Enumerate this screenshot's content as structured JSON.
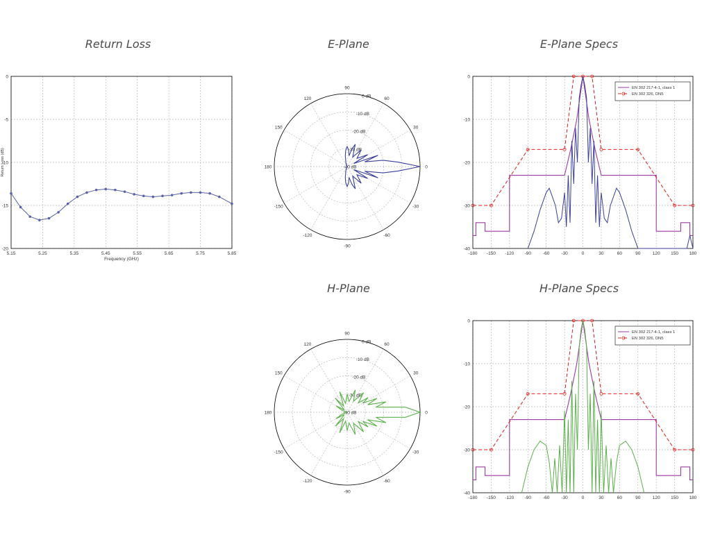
{
  "titles": {
    "return_loss": "Return Loss",
    "e_plane": "E-Plane",
    "e_plane_specs": "E-Plane Specs",
    "h_plane": "H-Plane",
    "h_plane_specs": "H-Plane Specs"
  },
  "colors": {
    "grid": "#b8b8b8",
    "frame": "#000000",
    "rl_curve": "#5a63a8",
    "e_pattern": "#3a3f9a",
    "h_pattern": "#5ab04a",
    "spec1": "#9b3aa0",
    "spec2": "#e02020",
    "text": "#333333"
  },
  "chart_data": [
    {
      "type": "line",
      "id": "return-loss",
      "xlabel": "Frequency (GHz)",
      "ylabel": "Return Loss (dB)",
      "xlim": [
        5.15,
        5.85
      ],
      "ylim": [
        -20,
        0
      ],
      "xticks": [
        "5.15",
        "5.25",
        "5.35",
        "5.45",
        "5.55",
        "5.65",
        "5.75",
        "5.85"
      ],
      "yticks": [
        "0",
        "-5",
        "-10",
        "-15",
        "-20"
      ],
      "grid": true,
      "series": [
        {
          "x": [
            5.15,
            5.18,
            5.21,
            5.24,
            5.27,
            5.3,
            5.33,
            5.36,
            5.39,
            5.42,
            5.45,
            5.48,
            5.51,
            5.54,
            5.57,
            5.6,
            5.63,
            5.66,
            5.69,
            5.72,
            5.75,
            5.78,
            5.81,
            5.85
          ],
          "y": [
            -13.6,
            -15.2,
            -16.3,
            -16.7,
            -16.5,
            -15.8,
            -14.8,
            -14.0,
            -13.5,
            -13.2,
            -13.1,
            -13.2,
            -13.4,
            -13.7,
            -13.9,
            -14.0,
            -13.9,
            -13.8,
            -13.6,
            -13.5,
            -13.5,
            -13.6,
            -14.0,
            -14.8
          ]
        }
      ]
    },
    {
      "type": "polar",
      "id": "e-plane",
      "rlim": [
        -40,
        0
      ],
      "ring_labels": [
        "0 dB",
        "-10 dB",
        "-20 dB",
        "-30 dB",
        "-40 dB"
      ],
      "angle_labels": [
        "90",
        "60",
        "30",
        "0",
        "-30",
        "-60",
        "-90",
        "-120",
        "-150",
        "180",
        "150",
        "120"
      ],
      "series": [
        {
          "angles": [
            -180,
            -165,
            -150,
            -135,
            -120,
            -110,
            -100,
            -95,
            -90,
            -85,
            -80,
            -75,
            -70,
            -60,
            -50,
            -40,
            -30,
            -25,
            -20,
            -15,
            -10,
            -5,
            0,
            5,
            10,
            15,
            20,
            25,
            30,
            40,
            50,
            60,
            70,
            75,
            80,
            85,
            90,
            95,
            100,
            110,
            120,
            135,
            150,
            165,
            180
          ],
          "values": [
            -40,
            -40,
            -40,
            -40,
            -40,
            -38,
            -34,
            -31,
            -29,
            -31,
            -34,
            -30,
            -27,
            -34,
            -28,
            -33,
            -27,
            -36,
            -22,
            -30,
            -20,
            -12,
            0,
            -12,
            -20,
            -30,
            -22,
            -36,
            -27,
            -33,
            -28,
            -34,
            -27,
            -30,
            -34,
            -31,
            -29,
            -31,
            -34,
            -38,
            -40,
            -40,
            -40,
            -40,
            -40
          ]
        }
      ]
    },
    {
      "type": "line",
      "id": "e-plane-specs",
      "xlim": [
        -180,
        180
      ],
      "ylim": [
        -40,
        0
      ],
      "xticks": [
        "-180",
        "-150",
        "-120",
        "-90",
        "-60",
        "-30",
        "0",
        "30",
        "60",
        "90",
        "120",
        "150",
        "180"
      ],
      "yticks": [
        "0",
        "-10",
        "-20",
        "-30",
        "-40"
      ],
      "grid": true,
      "legend": "top-right",
      "series": [
        {
          "name": "EN 302 217-4-1, class 1",
          "x": [
            -180,
            -175,
            -175,
            -160,
            -160,
            -120,
            -120,
            -30,
            -20,
            -10,
            -5,
            0,
            5,
            10,
            20,
            30,
            120,
            120,
            160,
            160,
            175,
            175,
            180
          ],
          "y": [
            -37,
            -37,
            -34,
            -34,
            -36,
            -36,
            -23,
            -23,
            -17,
            -10,
            -5,
            0,
            -5,
            -10,
            -17,
            -23,
            -23,
            -36,
            -36,
            -34,
            -34,
            -37,
            -37
          ]
        },
        {
          "name": "EN 302 326, DN5",
          "x": [
            -180,
            -150,
            -90,
            -30,
            -15,
            0,
            15,
            30,
            90,
            150,
            180
          ],
          "y": [
            -30,
            -30,
            -17,
            -17,
            0,
            0,
            0,
            -17,
            -17,
            -30,
            -30
          ]
        },
        {
          "x": [
            -90,
            -80,
            -70,
            -60,
            -55,
            -50,
            -45,
            -40,
            -35,
            -30,
            -27,
            -24,
            -21,
            -18,
            -15,
            -12,
            -9,
            -6,
            -3,
            0,
            3,
            6,
            9,
            12,
            15,
            18,
            21,
            24,
            27,
            30,
            35,
            40,
            45,
            50,
            55,
            60,
            70,
            80,
            90,
            170,
            175,
            180
          ],
          "y": [
            -40,
            -36,
            -31,
            -27,
            -26,
            -28,
            -30,
            -34,
            -33,
            -27,
            -35,
            -23,
            -34,
            -15,
            -25,
            -12,
            -20,
            -5,
            -2,
            0,
            -2,
            -5,
            -20,
            -12,
            -25,
            -15,
            -34,
            -23,
            -35,
            -27,
            -33,
            -34,
            -30,
            -28,
            -26,
            -27,
            -31,
            -36,
            -40,
            -40,
            -37,
            -40
          ]
        }
      ]
    },
    {
      "type": "polar",
      "id": "h-plane",
      "rlim": [
        -40,
        0
      ],
      "ring_labels": [
        "0 dB",
        "-10 dB",
        "-20 dB",
        "-30 dB",
        "-40 dB"
      ],
      "angle_labels": [
        "90",
        "60",
        "30",
        "0",
        "-30",
        "-60",
        "-90",
        "-120",
        "-150",
        "180",
        "150",
        "120"
      ],
      "series": [
        {
          "angles": [
            -180,
            -160,
            -150,
            -140,
            -130,
            -120,
            -110,
            -100,
            -90,
            -80,
            -70,
            -60,
            -50,
            -40,
            -35,
            -30,
            -25,
            -20,
            -15,
            -10,
            -5,
            0,
            5,
            10,
            15,
            20,
            25,
            30,
            35,
            40,
            50,
            60,
            70,
            80,
            90,
            100,
            110,
            120,
            130,
            140,
            150,
            160,
            180
          ],
          "values": [
            -40,
            -37,
            -33,
            -38,
            -30,
            -36,
            -28,
            -35,
            -30,
            -34,
            -27,
            -33,
            -26,
            -32,
            -26,
            -30,
            -22,
            -28,
            -18,
            -24,
            -8,
            0,
            -8,
            -24,
            -18,
            -28,
            -22,
            -30,
            -26,
            -32,
            -26,
            -33,
            -27,
            -34,
            -30,
            -35,
            -28,
            -36,
            -30,
            -38,
            -33,
            -37,
            -40
          ]
        }
      ]
    },
    {
      "type": "line",
      "id": "h-plane-specs",
      "xlim": [
        -180,
        180
      ],
      "ylim": [
        -40,
        0
      ],
      "xticks": [
        "-180",
        "-150",
        "-120",
        "-90",
        "-60",
        "-30",
        "0",
        "30",
        "60",
        "90",
        "120",
        "150",
        "180"
      ],
      "yticks": [
        "0",
        "-10",
        "-20",
        "-30",
        "-40"
      ],
      "grid": true,
      "legend": "top-right",
      "series": [
        {
          "name": "EN 302 217-4-1, class 1",
          "x": [
            -180,
            -175,
            -175,
            -160,
            -160,
            -120,
            -120,
            -30,
            -20,
            -10,
            -5,
            0,
            5,
            10,
            20,
            30,
            120,
            120,
            160,
            160,
            175,
            175,
            180
          ],
          "y": [
            -37,
            -37,
            -34,
            -34,
            -36,
            -36,
            -23,
            -23,
            -17,
            -10,
            -5,
            0,
            -5,
            -10,
            -17,
            -23,
            -23,
            -36,
            -36,
            -34,
            -34,
            -37,
            -37
          ]
        },
        {
          "name": "EN 302 326, DN5",
          "x": [
            -180,
            -150,
            -90,
            -30,
            -15,
            0,
            15,
            30,
            90,
            150,
            180
          ],
          "y": [
            -30,
            -30,
            -17,
            -17,
            0,
            0,
            0,
            -17,
            -17,
            -30,
            -30
          ]
        },
        {
          "x": [
            -100,
            -90,
            -80,
            -70,
            -60,
            -55,
            -50,
            -46,
            -42,
            -38,
            -34,
            -30,
            -27,
            -24,
            -21,
            -18,
            -15,
            -12,
            -9,
            -6,
            -3,
            0,
            3,
            6,
            9,
            12,
            15,
            18,
            21,
            24,
            27,
            30,
            34,
            38,
            42,
            46,
            50,
            55,
            60,
            70,
            80,
            90,
            100
          ],
          "y": [
            -40,
            -34,
            -30,
            -28,
            -29,
            -33,
            -40,
            -32,
            -40,
            -29,
            -40,
            -21,
            -40,
            -23,
            -40,
            -14,
            -40,
            -17,
            -30,
            -6,
            -2,
            0,
            -2,
            -6,
            -30,
            -17,
            -40,
            -14,
            -40,
            -23,
            -40,
            -21,
            -40,
            -29,
            -40,
            -32,
            -40,
            -33,
            -29,
            -28,
            -30,
            -34,
            -40
          ]
        }
      ]
    }
  ]
}
